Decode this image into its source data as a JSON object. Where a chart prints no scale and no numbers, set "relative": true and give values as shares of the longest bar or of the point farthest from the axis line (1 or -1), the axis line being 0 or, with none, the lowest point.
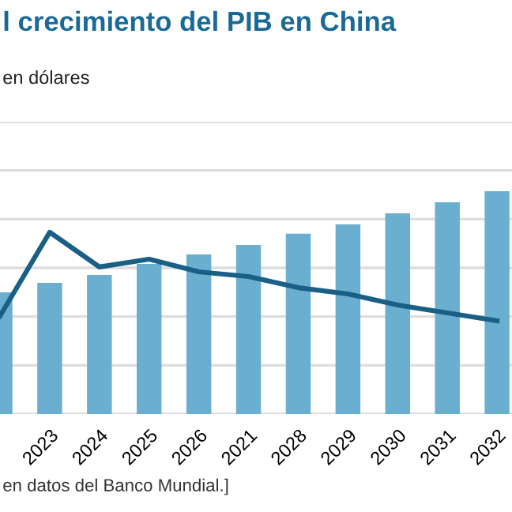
{
  "chart_data": {
    "type": "bar",
    "title": "l crecimiento del PIB en China",
    "subtitle": "en dólares",
    "annotations": [
      "en datos del Banco Mundial.]"
    ],
    "categories": [
      null,
      "2023",
      "2024",
      "2025",
      "2026",
      "2021",
      "2028",
      "2029",
      "2030",
      "2031",
      "2032"
    ],
    "relative": true,
    "grid": "y",
    "series": [
      {
        "type": "bar",
        "color": "#6aafd0",
        "values": [
          0.546,
          0.589,
          0.624,
          0.674,
          0.716,
          0.759,
          0.809,
          0.851,
          0.901,
          0.95,
          1
        ]
      },
      {
        "type": "line",
        "color": "#1a5f85",
        "values": [
          0.44,
          0.816,
          0.66,
          0.695,
          0.638,
          0.617,
          0.567,
          0.539,
          0.489,
          0.454,
          0.418
        ]
      }
    ]
  }
}
